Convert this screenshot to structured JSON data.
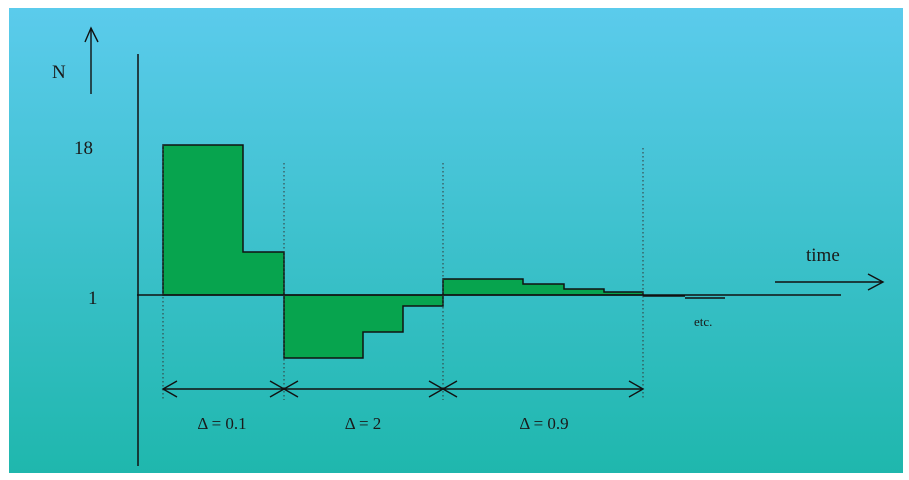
{
  "colors": {
    "background_top": "#5bcbec",
    "background_bottom": "#1fb7ad",
    "fill": "#07a44e",
    "line": "#111111"
  },
  "labels": {
    "y_axis": "N",
    "x_axis": "time",
    "y_tick_high": "18",
    "y_tick_base": "1",
    "etc": "etc.",
    "interval_1": "Δ = 0.1",
    "interval_2": "Δ = 2",
    "interval_3": "Δ = 0.9"
  }
}
